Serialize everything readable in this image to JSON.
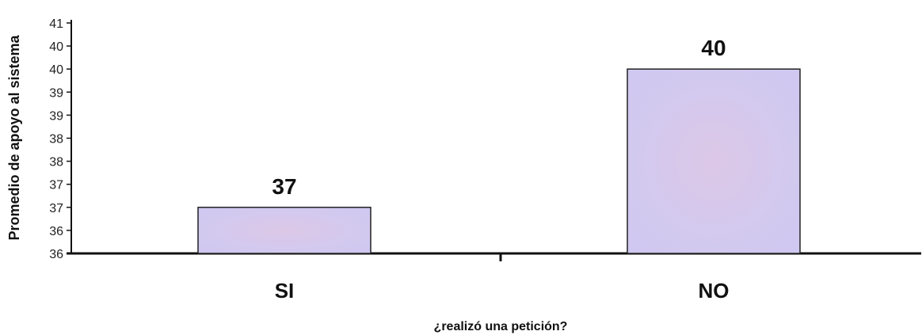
{
  "chart_data": {
    "type": "bar",
    "categories": [
      "SI",
      "NO"
    ],
    "values": [
      37,
      40
    ],
    "data_labels": [
      "37",
      "40"
    ],
    "xlabel": "¿realizó una petición?",
    "ylabel": "Promedio de apoyo al sistema",
    "ytick_labels": [
      "36",
      "36",
      "37",
      "37",
      "38",
      "38",
      "39",
      "39",
      "40",
      "40",
      "41"
    ],
    "ylim": [
      36,
      41
    ],
    "grid": false,
    "legend": "none",
    "bar_color": "#d2c8ee",
    "bar_border": "#222222"
  }
}
